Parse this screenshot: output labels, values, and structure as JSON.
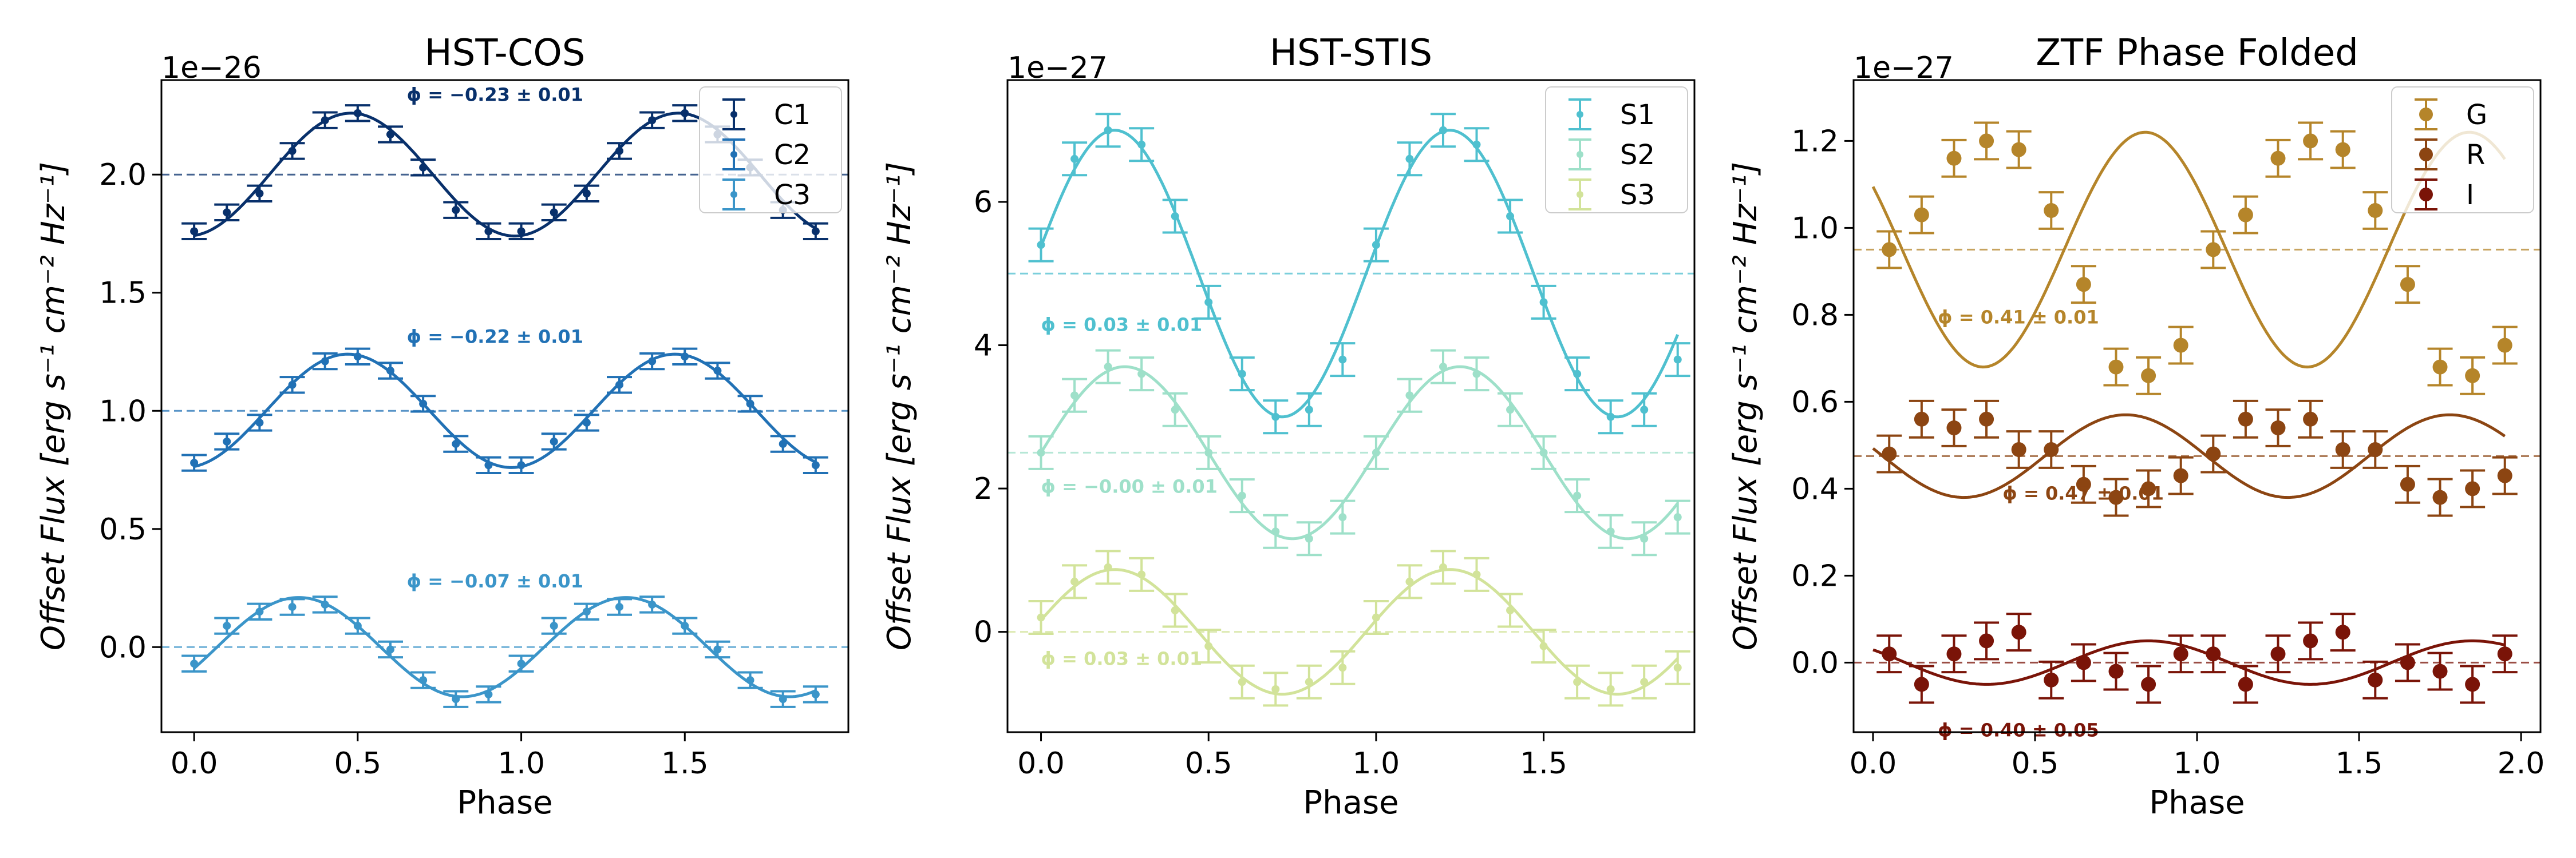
{
  "chart_data": [
    {
      "type": "scatter",
      "title": "HST-COS",
      "xlabel": "Phase",
      "ylabel": "Offset Flux [erg s⁻¹ cm⁻² Hz⁻¹]",
      "offset_text": "1e−26",
      "xlim": [
        -0.1,
        2.0
      ],
      "ylim": [
        -0.36,
        2.4
      ],
      "xticks": [
        0.0,
        0.5,
        1.0,
        1.5
      ],
      "xtick_labels": [
        "0.0",
        "0.5",
        "1.0",
        "1.5"
      ],
      "yticks": [
        0.0,
        0.5,
        1.0,
        1.5,
        2.0
      ],
      "ytick_labels": [
        "0.0",
        "0.5",
        "1.0",
        "1.5",
        "2.0"
      ],
      "legend_position": "top-right",
      "x": [
        0,
        0.1,
        0.2,
        0.3,
        0.4,
        0.5,
        0.6,
        0.7,
        0.8,
        0.9,
        1.0,
        1.1,
        1.2,
        1.3,
        1.4,
        1.5,
        1.6,
        1.7,
        1.8,
        1.9
      ],
      "series": [
        {
          "name": "C1",
          "color": "#08306b",
          "baseline": 2.0,
          "annotation": "ϕ = −0.23 ± 0.01",
          "amplitude": 0.26,
          "phase": -0.23,
          "values": [
            1.76,
            1.84,
            1.92,
            2.1,
            2.23,
            2.26,
            2.17,
            2.03,
            1.85,
            1.76,
            1.76,
            1.84,
            1.92,
            2.1,
            2.23,
            2.26,
            2.17,
            2.03,
            1.85,
            1.76
          ]
        },
        {
          "name": "C2",
          "color": "#2171b5",
          "baseline": 1.0,
          "annotation": "ϕ = −0.22 ± 0.01",
          "amplitude": 0.24,
          "phase": -0.22,
          "values": [
            0.78,
            0.87,
            0.95,
            1.11,
            1.21,
            1.23,
            1.17,
            1.03,
            0.86,
            0.77,
            0.77,
            0.87,
            0.95,
            1.11,
            1.21,
            1.23,
            1.17,
            1.03,
            0.86,
            0.77
          ]
        },
        {
          "name": "C3",
          "color": "#3b95c9",
          "baseline": 0.0,
          "annotation": "ϕ = −0.07 ± 0.01",
          "amplitude": 0.21,
          "phase": -0.07,
          "values": [
            -0.07,
            0.09,
            0.15,
            0.17,
            0.18,
            0.09,
            -0.01,
            -0.14,
            -0.22,
            -0.2,
            -0.07,
            0.09,
            0.15,
            0.17,
            0.18,
            0.09,
            -0.01,
            -0.14,
            -0.22,
            -0.2
          ]
        }
      ]
    },
    {
      "type": "scatter",
      "title": "HST-STIS",
      "xlabel": "Phase",
      "ylabel": "Offset Flux [erg s⁻¹ cm⁻² Hz⁻¹]",
      "offset_text": "1e−27",
      "xlim": [
        -0.1,
        1.95
      ],
      "ylim": [
        -1.4,
        7.7
      ],
      "xticks": [
        0.0,
        0.5,
        1.0,
        1.5
      ],
      "xtick_labels": [
        "0.0",
        "0.5",
        "1.0",
        "1.5"
      ],
      "yticks": [
        0,
        2,
        4,
        6
      ],
      "ytick_labels": [
        "0",
        "2",
        "4",
        "6"
      ],
      "legend_position": "top-right",
      "x": [
        0,
        0.1,
        0.2,
        0.3,
        0.4,
        0.5,
        0.6,
        0.7,
        0.8,
        0.9,
        1.0,
        1.1,
        1.2,
        1.3,
        1.4,
        1.5,
        1.6,
        1.7,
        1.8,
        1.9
      ],
      "series": [
        {
          "name": "S1",
          "color": "#4fc0cf",
          "baseline": 5.0,
          "annotation": "ϕ = 0.03 ± 0.01",
          "amplitude": 2.0,
          "phase": 0.03,
          "values": [
            5.4,
            6.6,
            7.0,
            6.8,
            5.8,
            4.6,
            3.6,
            3.0,
            3.1,
            3.8,
            5.4,
            6.6,
            7.0,
            6.8,
            5.8,
            4.6,
            3.6,
            3.0,
            3.1,
            3.8
          ]
        },
        {
          "name": "S2",
          "color": "#9ee0c9",
          "baseline": 2.5,
          "annotation": "ϕ = −0.00 ± 0.01",
          "amplitude": 1.2,
          "phase": 0.0,
          "values": [
            2.5,
            3.3,
            3.7,
            3.6,
            3.1,
            2.5,
            1.9,
            1.4,
            1.3,
            1.6,
            2.5,
            3.3,
            3.7,
            3.6,
            3.1,
            2.5,
            1.9,
            1.4,
            1.3,
            1.6
          ]
        },
        {
          "name": "S3",
          "color": "#d2e39a",
          "baseline": 0.0,
          "annotation": "ϕ = 0.03 ± 0.01",
          "amplitude": 0.87,
          "phase": 0.03,
          "values": [
            0.2,
            0.7,
            0.9,
            0.8,
            0.3,
            -0.2,
            -0.7,
            -0.8,
            -0.7,
            -0.5,
            0.2,
            0.7,
            0.9,
            0.8,
            0.3,
            -0.2,
            -0.7,
            -0.8,
            -0.7,
            -0.5
          ]
        }
      ]
    },
    {
      "type": "scatter",
      "title": "ZTF Phase Folded",
      "xlabel": "Phase",
      "ylabel": "Offset Flux [erg s⁻¹ cm⁻² Hz⁻¹]",
      "offset_text": "1e−27",
      "xlim": [
        -0.06,
        2.06
      ],
      "ylim": [
        -0.16,
        1.34
      ],
      "xticks": [
        0.0,
        0.5,
        1.0,
        1.5,
        2.0
      ],
      "xtick_labels": [
        "0.0",
        "0.5",
        "1.0",
        "1.5",
        "2.0"
      ],
      "yticks": [
        0.0,
        0.2,
        0.4,
        0.6,
        0.8,
        1.0,
        1.2
      ],
      "ytick_labels": [
        "0.0",
        "0.2",
        "0.4",
        "0.6",
        "0.8",
        "1.0",
        "1.2"
      ],
      "legend_position": "top-right",
      "x": [
        0.05,
        0.15,
        0.25,
        0.35,
        0.45,
        0.55,
        0.65,
        0.75,
        0.85,
        0.95,
        1.05,
        1.15,
        1.25,
        1.35,
        1.45,
        1.55,
        1.65,
        1.75,
        1.85,
        1.95
      ],
      "series": [
        {
          "name": "G",
          "color": "#b5852a",
          "baseline": 0.95,
          "annotation": "ϕ = 0.41 ± 0.01",
          "amplitude": 0.27,
          "phase": 0.41,
          "values": [
            0.95,
            1.03,
            1.16,
            1.2,
            1.18,
            1.04,
            0.87,
            0.68,
            0.66,
            0.73,
            0.95,
            1.03,
            1.16,
            1.2,
            1.18,
            1.04,
            0.87,
            0.68,
            0.66,
            0.73
          ]
        },
        {
          "name": "R",
          "color": "#8c4512",
          "baseline": 0.475,
          "annotation": "ϕ = 0.47 ± 0.01",
          "amplitude": 0.095,
          "phase": 0.47,
          "values": [
            0.48,
            0.56,
            0.54,
            0.56,
            0.49,
            0.49,
            0.41,
            0.38,
            0.4,
            0.43,
            0.48,
            0.56,
            0.54,
            0.56,
            0.49,
            0.49,
            0.41,
            0.38,
            0.4,
            0.43
          ]
        },
        {
          "name": "I",
          "color": "#7a1408",
          "baseline": 0.0,
          "annotation": "ϕ = 0.40 ± 0.05",
          "amplitude": 0.05,
          "phase": 0.4,
          "values": [
            0.02,
            -0.05,
            0.02,
            0.05,
            0.07,
            -0.04,
            0.0,
            -0.02,
            -0.05,
            0.02,
            0.02,
            -0.05,
            0.02,
            0.05,
            0.07,
            -0.04,
            0.0,
            -0.02,
            -0.05,
            0.02
          ]
        }
      ]
    }
  ]
}
